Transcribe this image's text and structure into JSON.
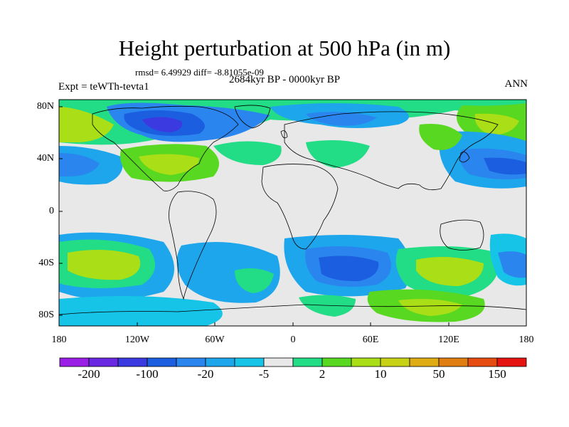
{
  "plot": {
    "title": "Height perturbation at 500 hPa (in m)",
    "stats": "rmsd= 6.49929 diff= -8.81055e-09",
    "period": "2684kyr BP - 0000kyr BP",
    "experiment": "Expt = teWTh-tevta1",
    "season": "ANN"
  },
  "map": {
    "lat_labels": [
      "80N",
      "40N",
      "0",
      "40S",
      "80S"
    ],
    "lon_labels": [
      "180",
      "120W",
      "60W",
      "0",
      "60E",
      "120E",
      "180"
    ]
  },
  "colorbar": {
    "colors": [
      "#9a1ee6",
      "#6a28e2",
      "#3a3ae0",
      "#1c5ee0",
      "#2a86ee",
      "#1ea6ec",
      "#16c4e8",
      "#e8e8e8",
      "#22dc86",
      "#58d820",
      "#aade16",
      "#c8d214",
      "#e0ac14",
      "#e07e12",
      "#e64c10",
      "#e61410"
    ],
    "labels": [
      "-200",
      "-100",
      "-20",
      "-5",
      "2",
      "10",
      "50",
      "150"
    ]
  },
  "field_colors": {
    "neutral": "#e8e8e8",
    "light_green": "#22dc86",
    "green": "#58d820",
    "yellow_green": "#aade16",
    "cyan": "#16c4e8",
    "sky": "#1ea6ec",
    "blue": "#2a86ee",
    "dark_blue": "#1c5ee0",
    "deep_blue": "#3a3ae0"
  }
}
